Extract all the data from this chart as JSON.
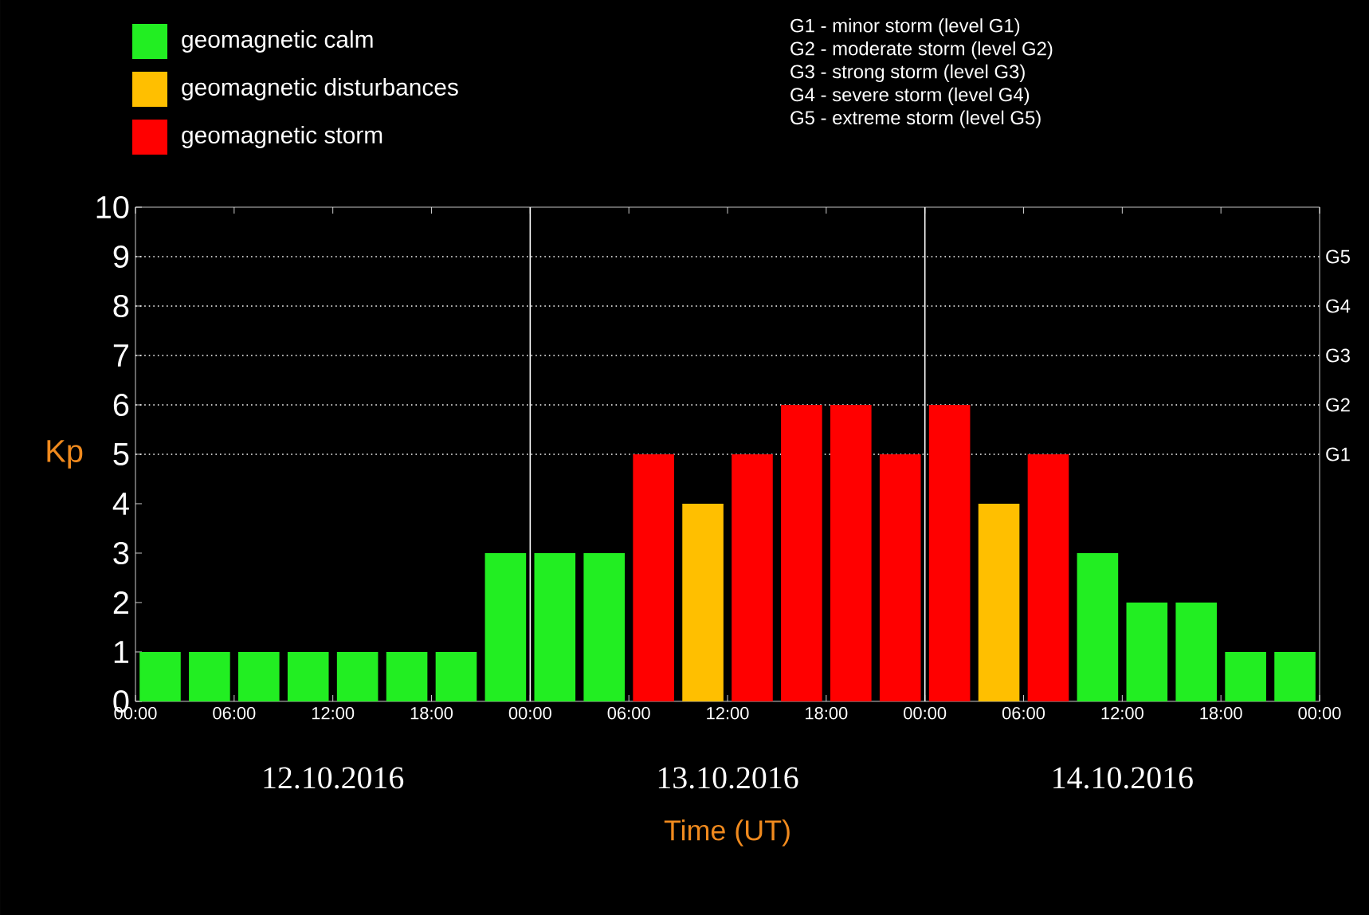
{
  "chart_data": {
    "type": "bar",
    "xlabel": "Time (UT)",
    "ylabel": "Kp",
    "x": [
      "2016-10-12T01:30",
      "2016-10-12T04:30",
      "2016-10-12T07:30",
      "2016-10-12T10:30",
      "2016-10-12T13:30",
      "2016-10-12T16:30",
      "2016-10-12T19:30",
      "2016-10-12T22:30",
      "2016-10-13T01:30",
      "2016-10-13T04:30",
      "2016-10-13T07:30",
      "2016-10-13T10:30",
      "2016-10-13T13:30",
      "2016-10-13T16:30",
      "2016-10-13T19:30",
      "2016-10-13T22:30",
      "2016-10-14T01:30",
      "2016-10-14T04:30",
      "2016-10-14T07:30",
      "2016-10-14T10:30",
      "2016-10-14T13:30",
      "2016-10-14T16:30",
      "2016-10-14T19:30",
      "2016-10-14T22:30"
    ],
    "series": [
      {
        "name": "geomagnetic calm",
        "color": "#22ee22",
        "values": [
          1,
          1,
          1,
          1,
          1,
          1,
          1,
          3,
          3,
          3,
          null,
          null,
          null,
          null,
          null,
          null,
          null,
          null,
          null,
          3,
          2,
          2,
          1,
          1
        ]
      },
      {
        "name": "geomagnetic disturbances",
        "color": "#ffbf00",
        "values": [
          null,
          null,
          null,
          null,
          null,
          null,
          null,
          null,
          null,
          null,
          null,
          4,
          null,
          null,
          null,
          null,
          null,
          4,
          null,
          null,
          null,
          null,
          null,
          null
        ]
      },
      {
        "name": "geomagnetic storm",
        "color": "#ff0000",
        "values": [
          null,
          null,
          null,
          null,
          null,
          null,
          null,
          null,
          null,
          null,
          5,
          null,
          5,
          6,
          6,
          5,
          6,
          null,
          5,
          null,
          null,
          null,
          null,
          null
        ]
      }
    ],
    "xlim": [
      "2016-10-12T00:00",
      "2016-10-15T00:00"
    ],
    "xticks": [
      {
        "value": "2016-10-12T00:00",
        "label": "00:00"
      },
      {
        "value": "2016-10-12T06:00",
        "label": "06:00"
      },
      {
        "value": "2016-10-12T12:00",
        "label": "12:00"
      },
      {
        "value": "2016-10-12T18:00",
        "label": "18:00"
      },
      {
        "value": "2016-10-13T00:00",
        "label": "00:00"
      },
      {
        "value": "2016-10-13T06:00",
        "label": "06:00"
      },
      {
        "value": "2016-10-13T12:00",
        "label": "12:00"
      },
      {
        "value": "2016-10-13T18:00",
        "label": "18:00"
      },
      {
        "value": "2016-10-14T00:00",
        "label": "00:00"
      },
      {
        "value": "2016-10-14T06:00",
        "label": "06:00"
      },
      {
        "value": "2016-10-14T12:00",
        "label": "12:00"
      },
      {
        "value": "2016-10-14T18:00",
        "label": "18:00"
      },
      {
        "value": "2016-10-15T00:00",
        "label": "00:00"
      }
    ],
    "ylim": [
      0,
      10
    ],
    "yticks": [
      0,
      1,
      2,
      3,
      4,
      5,
      6,
      7,
      8,
      9,
      10
    ],
    "ref_lines": [
      {
        "axis": "y",
        "value": 5,
        "label": "G1",
        "color": "#ffffff",
        "line_style": "dotted"
      },
      {
        "axis": "y",
        "value": 6,
        "label": "G2",
        "color": "#ffffff",
        "line_style": "dotted"
      },
      {
        "axis": "y",
        "value": 7,
        "label": "G3",
        "color": "#ffffff",
        "line_style": "dotted"
      },
      {
        "axis": "y",
        "value": 8,
        "label": "G4",
        "color": "#ffffff",
        "line_style": "dotted"
      },
      {
        "axis": "y",
        "value": 9,
        "label": "G5",
        "color": "#ffffff",
        "line_style": "dotted"
      },
      {
        "axis": "x",
        "value": "2016-10-13T00:00",
        "color": "#ffffff",
        "line_style": "solid"
      },
      {
        "axis": "x",
        "value": "2016-10-14T00:00",
        "color": "#ffffff",
        "line_style": "solid"
      }
    ],
    "annotations": [
      "G1 - minor storm (level G1)",
      "G2 - moderate storm (level G2)",
      "G3 - strong storm (level G3)",
      "G4 - severe storm (level G4)",
      "G5 - extreme storm (level G5)",
      "12.10.2016",
      "13.10.2016",
      "14.10.2016"
    ],
    "legend": "top left"
  }
}
